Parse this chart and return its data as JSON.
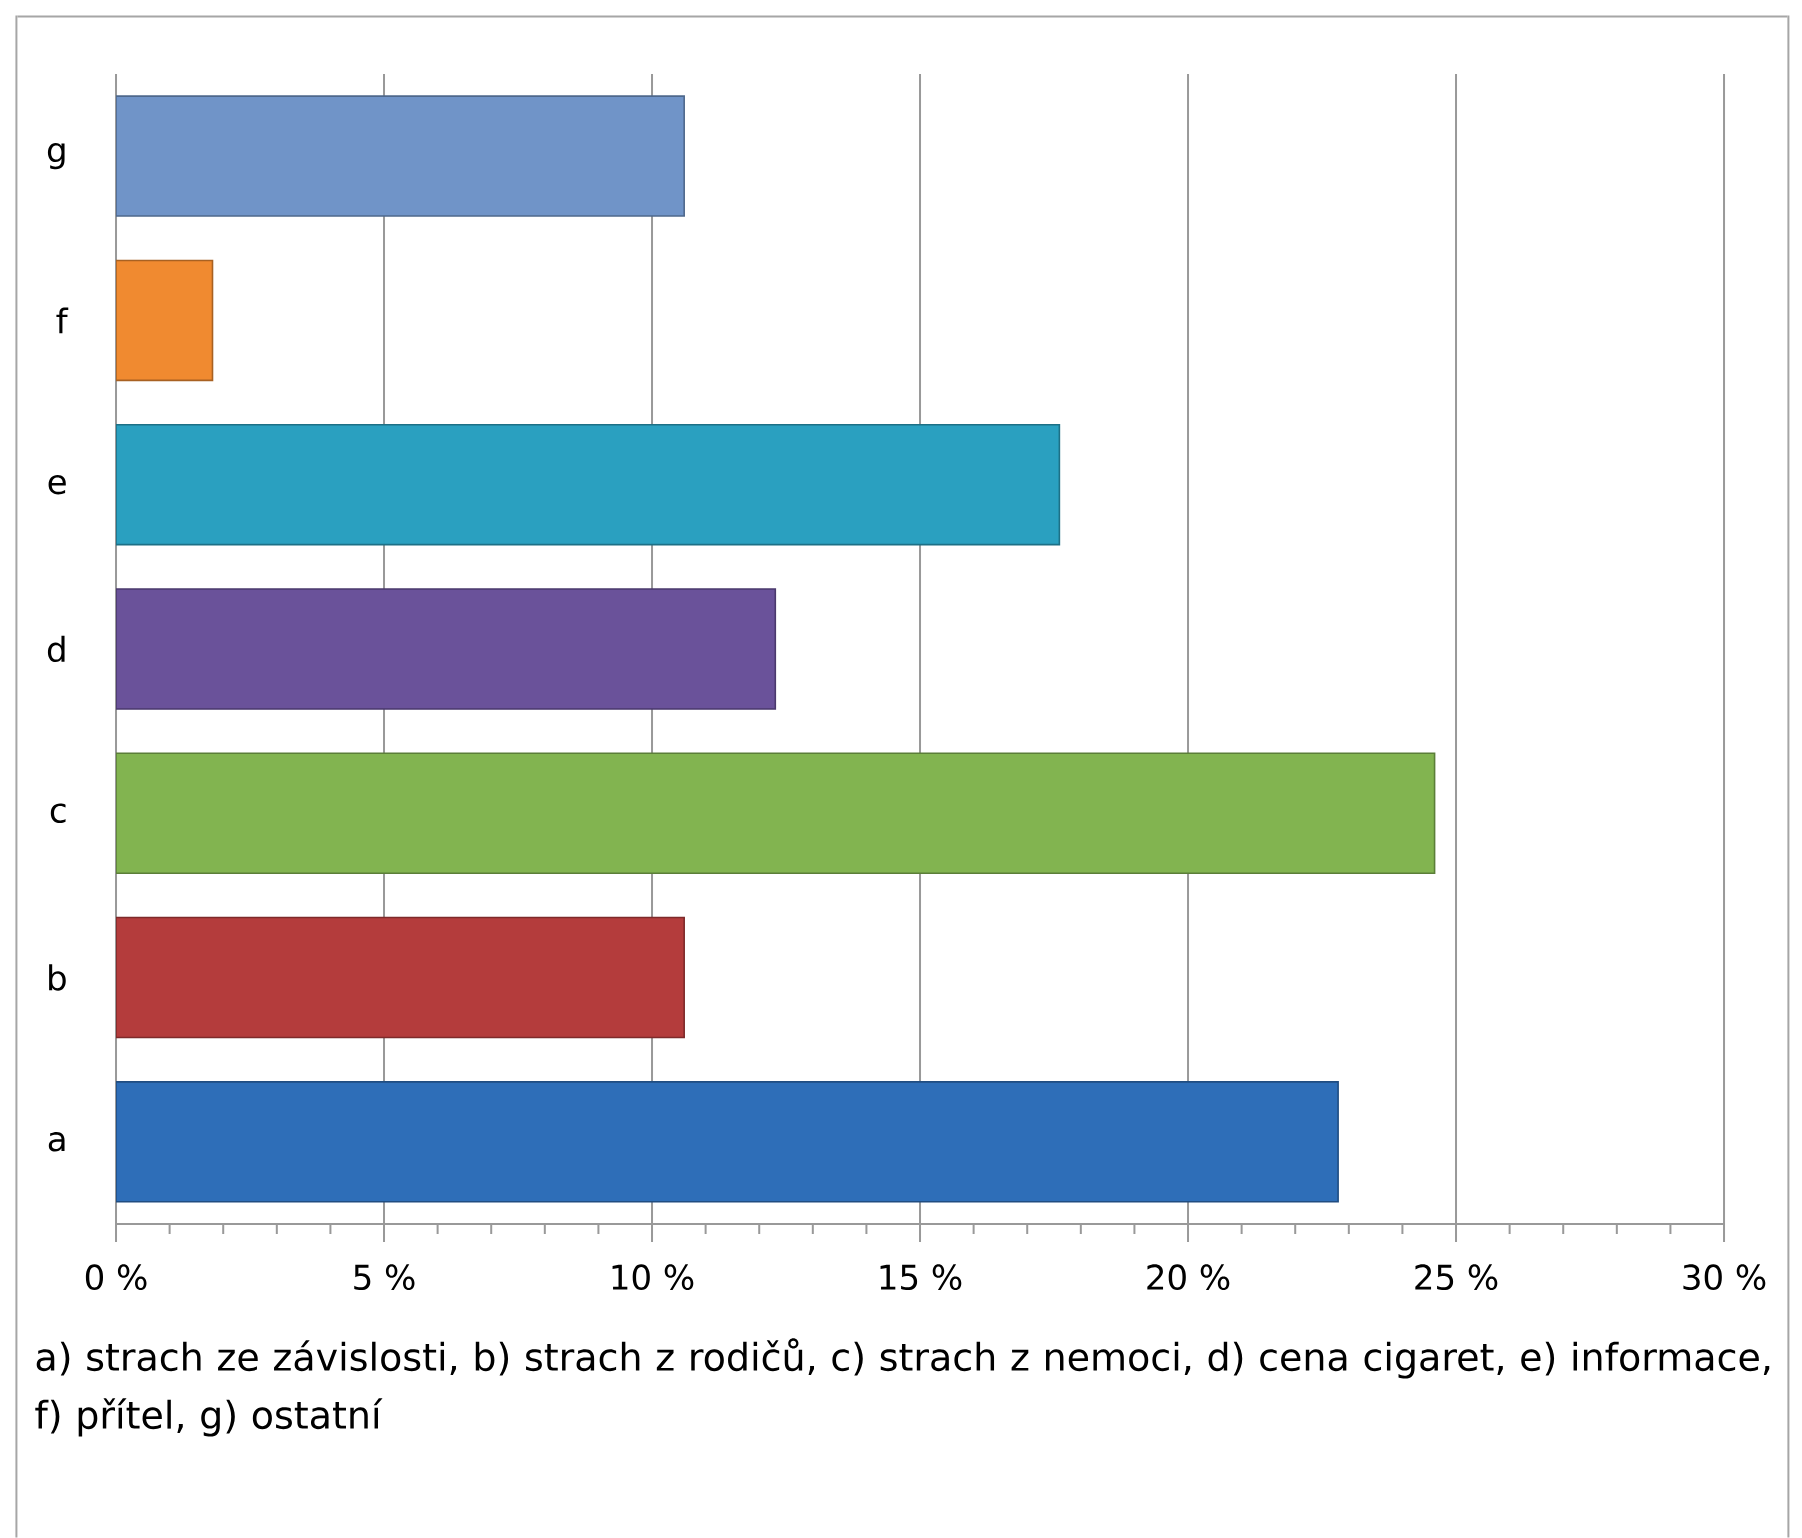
{
  "chart_data": {
    "type": "bar",
    "orientation": "horizontal",
    "categories": [
      "g",
      "f",
      "e",
      "d",
      "c",
      "b",
      "a"
    ],
    "values": [
      10.6,
      1.8,
      17.6,
      12.3,
      24.6,
      10.6,
      22.8
    ],
    "colors": [
      "#7094c8",
      "#f08a30",
      "#2aa0c0",
      "#6a529a",
      "#82b450",
      "#b43c3c",
      "#2e6eb8"
    ],
    "xlim": [
      0,
      30
    ],
    "xticks": [
      {
        "value": 0,
        "label": "0 %"
      },
      {
        "value": 1,
        "label": null
      },
      {
        "value": 2,
        "label": null
      },
      {
        "value": 3,
        "label": null
      },
      {
        "value": 4,
        "label": null
      },
      {
        "value": 5,
        "label": "5 %"
      },
      {
        "value": 6,
        "label": null
      },
      {
        "value": 7,
        "label": null
      },
      {
        "value": 8,
        "label": null
      },
      {
        "value": 9,
        "label": null
      },
      {
        "value": 10,
        "label": "10 %"
      },
      {
        "value": 11,
        "label": null
      },
      {
        "value": 12,
        "label": null
      },
      {
        "value": 13,
        "label": null
      },
      {
        "value": 14,
        "label": null
      },
      {
        "value": 15,
        "label": "15 %"
      },
      {
        "value": 16,
        "label": null
      },
      {
        "value": 17,
        "label": null
      },
      {
        "value": 18,
        "label": null
      },
      {
        "value": 19,
        "label": null
      },
      {
        "value": 20,
        "label": "20 %"
      },
      {
        "value": 21,
        "label": null
      },
      {
        "value": 22,
        "label": null
      },
      {
        "value": 23,
        "label": null
      },
      {
        "value": 24,
        "label": null
      },
      {
        "value": 25,
        "label": "25 %"
      },
      {
        "value": 26,
        "label": null
      },
      {
        "value": 27,
        "label": null
      },
      {
        "value": 28,
        "label": null
      },
      {
        "value": 29,
        "label": null
      },
      {
        "value": 30,
        "label": "30 %"
      }
    ],
    "grid": "x",
    "annotations": [
      "a) strach ze závislosti, b) strach z rodičů, c) strach z nemoci, d) cena cigaret, e) informace, f) přítel, g) ostatní"
    ]
  }
}
